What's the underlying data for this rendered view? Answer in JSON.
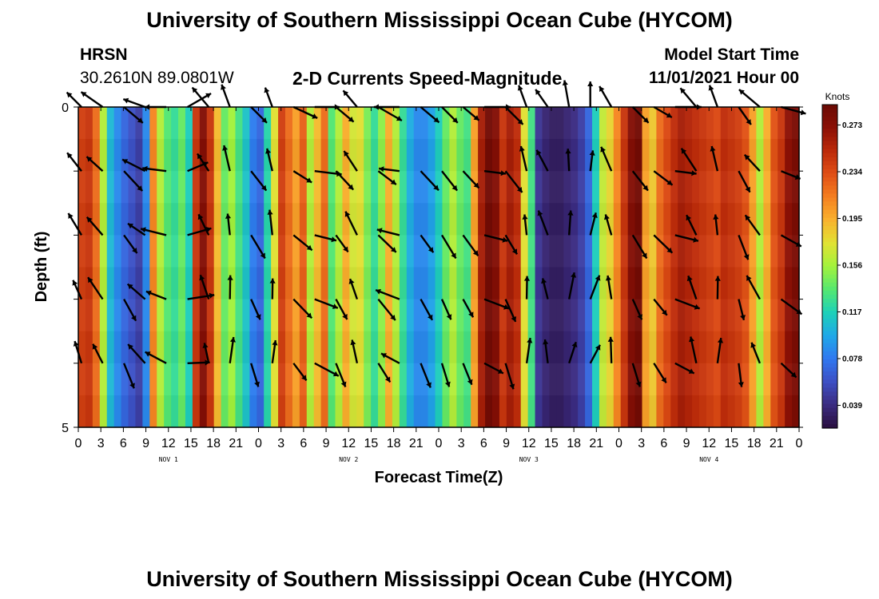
{
  "header": {
    "title": "University of Southern Mississippi Ocean Cube (HYCOM)",
    "station": "HRSN",
    "coords": "30.2610N  89.0801W",
    "subtitle": "2-D Currents Speed-Magnitude",
    "model_start_label": "Model Start Time",
    "model_start_value": "11/01/2021 Hour 00"
  },
  "footer": {
    "title": "University of Southern Mississippi Ocean Cube (HYCOM)"
  },
  "chart_data": {
    "type": "heatmap",
    "title": "2-D Currents Speed-Magnitude",
    "xlabel": "Forecast Time(Z)",
    "ylabel": "Depth (ft)",
    "x_tick_labels": [
      "0",
      "3",
      "6",
      "9",
      "12",
      "15",
      "18",
      "21",
      "0",
      "3",
      "6",
      "9",
      "12",
      "15",
      "18",
      "21",
      "0",
      "3",
      "6",
      "9",
      "12",
      "15",
      "18",
      "21",
      "0",
      "3",
      "6",
      "9",
      "12",
      "15",
      "18",
      "21",
      "0"
    ],
    "day_labels": [
      "NOV 1",
      "NOV 2",
      "NOV 3",
      "NOV 4"
    ],
    "y_tick_labels": [
      "0",
      "5"
    ],
    "ylim": [
      0,
      5
    ],
    "colorbar": {
      "unit": "Knots",
      "ticks": [
        "0.039",
        "0.078",
        "0.117",
        "0.156",
        "0.195",
        "0.234",
        "0.273"
      ],
      "range": [
        0.02,
        0.29
      ]
    },
    "speed_series_knots": [
      0.24,
      0.245,
      0.22,
      0.16,
      0.105,
      0.085,
      0.07,
      0.06,
      0.05,
      0.085,
      0.21,
      0.16,
      0.135,
      0.125,
      0.14,
      0.115,
      0.245,
      0.275,
      0.245,
      0.19,
      0.14,
      0.155,
      0.13,
      0.11,
      0.08,
      0.07,
      0.12,
      0.175,
      0.24,
      0.22,
      0.2,
      0.225,
      0.16,
      0.19,
      0.22,
      0.135,
      0.16,
      0.195,
      0.17,
      0.175,
      0.145,
      0.125,
      0.15,
      0.195,
      0.16,
      0.125,
      0.1,
      0.085,
      0.085,
      0.095,
      0.115,
      0.14,
      0.16,
      0.14,
      0.13,
      0.2,
      0.26,
      0.285,
      0.275,
      0.245,
      0.26,
      0.25,
      0.175,
      0.13,
      0.045,
      0.035,
      0.03,
      0.03,
      0.035,
      0.04,
      0.05,
      0.07,
      0.115,
      0.165,
      0.18,
      0.21,
      0.245,
      0.275,
      0.285,
      0.2,
      0.185,
      0.22,
      0.235,
      0.25,
      0.26,
      0.255,
      0.25,
      0.245,
      0.24,
      0.235,
      0.25,
      0.245,
      0.24,
      0.23,
      0.2,
      0.16,
      0.195,
      0.23,
      0.245,
      0.27,
      0.28
    ],
    "colors": {
      "ramp": [
        "#2a0f3f",
        "#3b2b80",
        "#3d4fc4",
        "#3078f0",
        "#1fa8e8",
        "#1ed1b8",
        "#55e870",
        "#a3f23c",
        "#e1e234",
        "#f9b22e",
        "#f57f20",
        "#e04e15",
        "#bc2a0a",
        "#8b1006",
        "#6a0a04"
      ],
      "arrow": "#000000"
    }
  }
}
